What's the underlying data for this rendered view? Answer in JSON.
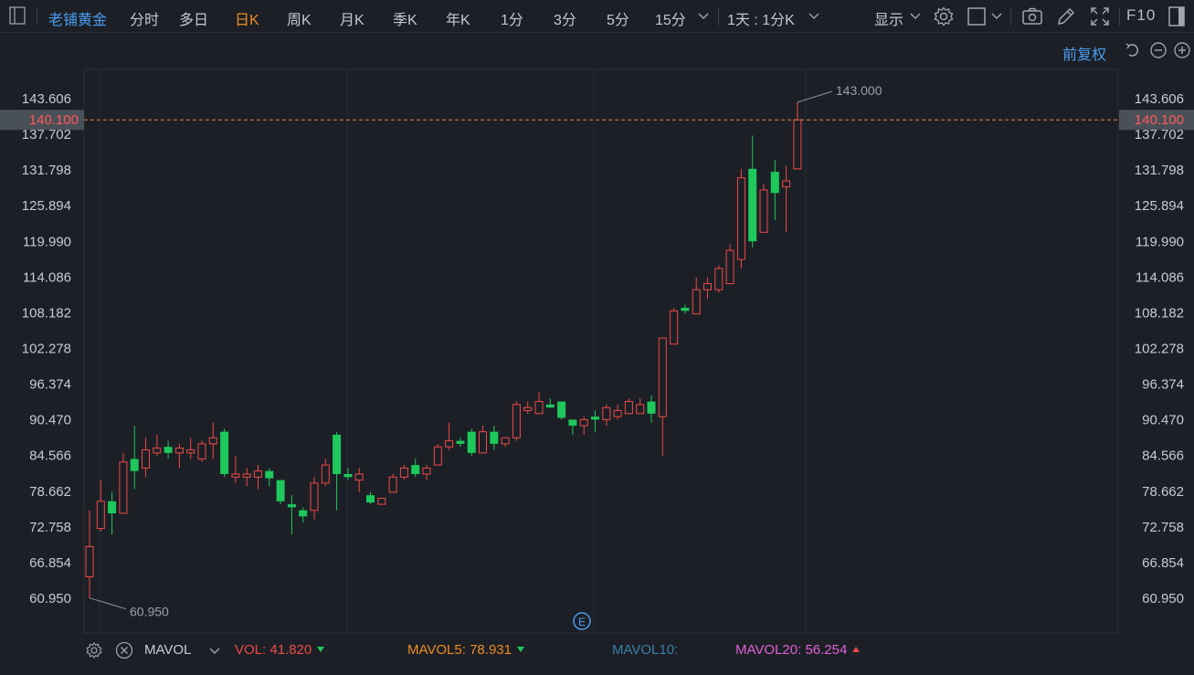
{
  "toolbar": {
    "stock_name": "老铺黄金",
    "periods": [
      "分时",
      "多日",
      "日K",
      "周K",
      "月K",
      "季K",
      "年K",
      "1分",
      "3分",
      "5分",
      "15分"
    ],
    "active_period": "日K",
    "range_select": "1天 : 1分K",
    "display_label": "显示",
    "f10_label": "F10"
  },
  "subbar": {
    "adjust_label": "前复权"
  },
  "axis": {
    "y_ticks": [
      "143.606",
      "137.702",
      "131.798",
      "125.894",
      "119.990",
      "114.086",
      "108.182",
      "102.278",
      "96.374",
      "90.470",
      "84.566",
      "78.662",
      "72.758",
      "66.854",
      "60.950"
    ],
    "current_price": "140.100",
    "high_label": "143.000",
    "low_label": "60.950",
    "event_marker": "E"
  },
  "volume": {
    "indicator": "MAVOL",
    "vol_label": "VOL:",
    "vol_value": "41.820",
    "mavol5_label": "MAVOL5:",
    "mavol5_value": "78.931",
    "mavol10_label": "MAVOL10:",
    "mavol20_label": "MAVOL20:",
    "mavol20_value": "56.254"
  },
  "colors": {
    "up": "#f04848",
    "down": "#1ec85a",
    "accent": "#f08a24",
    "link": "#4a9cf0",
    "mavol5": "#f08a24",
    "mavol10": "#3a7ea8",
    "mavol20": "#e060d8"
  },
  "chart_data": {
    "type": "candlestick",
    "y_min": 60.95,
    "y_max": 143.606,
    "current_price": 140.1,
    "high": 143.0,
    "low": 60.95,
    "candles": [
      {
        "o": 64.5,
        "h": 75.5,
        "l": 61.0,
        "c": 69.5
      },
      {
        "o": 72.5,
        "h": 80.5,
        "l": 72.0,
        "c": 77.0
      },
      {
        "o": 77.0,
        "h": 78.5,
        "l": 71.5,
        "c": 75.0
      },
      {
        "o": 75.0,
        "h": 85.0,
        "l": 75.0,
        "c": 83.5
      },
      {
        "o": 84.0,
        "h": 89.5,
        "l": 79.0,
        "c": 82.0
      },
      {
        "o": 82.5,
        "h": 87.5,
        "l": 81.0,
        "c": 85.5
      },
      {
        "o": 85.0,
        "h": 88.0,
        "l": 84.5,
        "c": 85.8
      },
      {
        "o": 86.0,
        "h": 87.0,
        "l": 84.0,
        "c": 85.0
      },
      {
        "o": 85.0,
        "h": 86.5,
        "l": 82.5,
        "c": 85.8
      },
      {
        "o": 85.0,
        "h": 87.5,
        "l": 84.0,
        "c": 85.5
      },
      {
        "o": 84.0,
        "h": 87.0,
        "l": 83.5,
        "c": 86.5
      },
      {
        "o": 86.5,
        "h": 90.0,
        "l": 84.0,
        "c": 87.5
      },
      {
        "o": 88.5,
        "h": 89.0,
        "l": 81.0,
        "c": 81.5
      },
      {
        "o": 81.0,
        "h": 84.5,
        "l": 80.0,
        "c": 81.5
      },
      {
        "o": 81.0,
        "h": 82.5,
        "l": 79.5,
        "c": 81.5
      },
      {
        "o": 81.0,
        "h": 83.0,
        "l": 79.0,
        "c": 82.0
      },
      {
        "o": 82.0,
        "h": 82.5,
        "l": 79.5,
        "c": 80.8
      },
      {
        "o": 80.5,
        "h": 80.5,
        "l": 76.5,
        "c": 77.0
      },
      {
        "o": 76.5,
        "h": 78.0,
        "l": 71.5,
        "c": 76.0
      },
      {
        "o": 75.5,
        "h": 76.0,
        "l": 73.5,
        "c": 74.5
      },
      {
        "o": 75.5,
        "h": 81.0,
        "l": 74.0,
        "c": 80.0
      },
      {
        "o": 80.0,
        "h": 84.0,
        "l": 79.5,
        "c": 83.0
      },
      {
        "o": 88.0,
        "h": 88.5,
        "l": 75.5,
        "c": 81.5
      },
      {
        "o": 81.5,
        "h": 82.5,
        "l": 80.5,
        "c": 81.0
      },
      {
        "o": 80.5,
        "h": 82.5,
        "l": 78.5,
        "c": 81.5
      },
      {
        "o": 78.0,
        "h": 78.5,
        "l": 76.5,
        "c": 76.8
      },
      {
        "o": 76.5,
        "h": 77.5,
        "l": 76.5,
        "c": 77.5
      },
      {
        "o": 78.5,
        "h": 81.5,
        "l": 78.5,
        "c": 81.0
      },
      {
        "o": 81.0,
        "h": 83.0,
        "l": 80.5,
        "c": 82.5
      },
      {
        "o": 83.0,
        "h": 84.0,
        "l": 81.0,
        "c": 81.5
      },
      {
        "o": 81.5,
        "h": 83.0,
        "l": 80.5,
        "c": 82.5
      },
      {
        "o": 83.0,
        "h": 86.5,
        "l": 83.0,
        "c": 86.0
      },
      {
        "o": 86.0,
        "h": 90.0,
        "l": 85.5,
        "c": 87.0
      },
      {
        "o": 87.0,
        "h": 87.5,
        "l": 86.0,
        "c": 86.5
      },
      {
        "o": 88.5,
        "h": 89.0,
        "l": 84.5,
        "c": 85.0
      },
      {
        "o": 85.0,
        "h": 89.5,
        "l": 85.0,
        "c": 88.5
      },
      {
        "o": 88.5,
        "h": 89.5,
        "l": 85.5,
        "c": 86.5
      },
      {
        "o": 86.5,
        "h": 87.0,
        "l": 86.0,
        "c": 87.5
      },
      {
        "o": 87.5,
        "h": 93.5,
        "l": 87.0,
        "c": 93.0
      },
      {
        "o": 92.0,
        "h": 93.5,
        "l": 91.5,
        "c": 92.5
      },
      {
        "o": 91.5,
        "h": 95.0,
        "l": 91.5,
        "c": 93.5
      },
      {
        "o": 93.0,
        "h": 94.0,
        "l": 92.5,
        "c": 92.5
      },
      {
        "o": 93.5,
        "h": 93.5,
        "l": 90.5,
        "c": 90.8
      },
      {
        "o": 90.5,
        "h": 90.5,
        "l": 88.0,
        "c": 89.5
      },
      {
        "o": 89.5,
        "h": 91.0,
        "l": 88.0,
        "c": 90.5
      },
      {
        "o": 91.0,
        "h": 92.0,
        "l": 88.5,
        "c": 90.5
      },
      {
        "o": 90.5,
        "h": 93.0,
        "l": 89.5,
        "c": 92.5
      },
      {
        "o": 91.0,
        "h": 93.0,
        "l": 90.5,
        "c": 92.0
      },
      {
        "o": 91.5,
        "h": 94.0,
        "l": 91.5,
        "c": 93.5
      },
      {
        "o": 91.5,
        "h": 94.0,
        "l": 91.5,
        "c": 93.0
      },
      {
        "o": 93.5,
        "h": 94.5,
        "l": 90.0,
        "c": 91.5
      },
      {
        "o": 91.0,
        "h": 104.0,
        "l": 84.5,
        "c": 104.0
      },
      {
        "o": 103.0,
        "h": 109.0,
        "l": 103.0,
        "c": 108.5
      },
      {
        "o": 109.0,
        "h": 109.5,
        "l": 108.0,
        "c": 108.5
      },
      {
        "o": 108.0,
        "h": 114.0,
        "l": 108.0,
        "c": 112.0
      },
      {
        "o": 112.0,
        "h": 114.0,
        "l": 110.5,
        "c": 113.0
      },
      {
        "o": 112.0,
        "h": 116.0,
        "l": 111.5,
        "c": 115.5
      },
      {
        "o": 113.0,
        "h": 119.5,
        "l": 113.0,
        "c": 118.5
      },
      {
        "o": 117.0,
        "h": 132.0,
        "l": 115.5,
        "c": 130.5
      },
      {
        "o": 132.0,
        "h": 137.5,
        "l": 119.0,
        "c": 120.0
      },
      {
        "o": 121.5,
        "h": 129.5,
        "l": 121.5,
        "c": 128.5
      },
      {
        "o": 131.5,
        "h": 133.5,
        "l": 123.5,
        "c": 128.0
      },
      {
        "o": 129.0,
        "h": 132.5,
        "l": 121.5,
        "c": 130.0
      },
      {
        "o": 132.0,
        "h": 143.0,
        "l": 132.0,
        "c": 140.1
      }
    ]
  }
}
